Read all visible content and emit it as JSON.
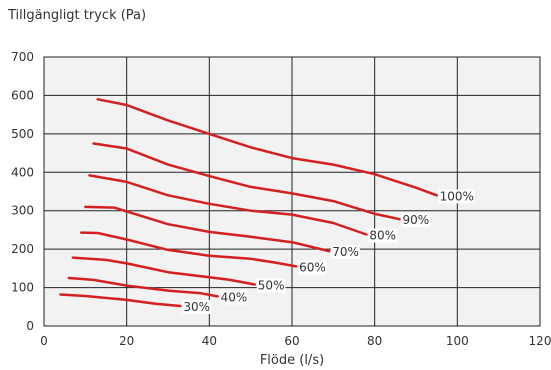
{
  "chart_data": {
    "type": "line",
    "xlabel": "Flöde (l/s)",
    "ylabel": "Tillgängligt tryck (Pa)",
    "xlim": [
      0,
      120
    ],
    "ylim": [
      0,
      700
    ],
    "xticks": [
      0,
      20,
      40,
      60,
      80,
      100,
      120
    ],
    "yticks": [
      0,
      100,
      200,
      300,
      400,
      500,
      600,
      700
    ],
    "grid": true,
    "line_color": "#d42020",
    "plot_background": "#f2f2f2",
    "series": [
      {
        "name": "100%",
        "points": [
          [
            13,
            590
          ],
          [
            20,
            575
          ],
          [
            30,
            535
          ],
          [
            40,
            500
          ],
          [
            50,
            465
          ],
          [
            60,
            437
          ],
          [
            70,
            420
          ],
          [
            80,
            395
          ],
          [
            90,
            360
          ],
          [
            95,
            340
          ]
        ]
      },
      {
        "name": "90%",
        "points": [
          [
            12,
            475
          ],
          [
            20,
            462
          ],
          [
            30,
            420
          ],
          [
            40,
            390
          ],
          [
            50,
            362
          ],
          [
            60,
            345
          ],
          [
            70,
            325
          ],
          [
            80,
            292
          ],
          [
            86,
            278
          ]
        ]
      },
      {
        "name": "80%",
        "points": [
          [
            11,
            392
          ],
          [
            20,
            375
          ],
          [
            30,
            340
          ],
          [
            40,
            318
          ],
          [
            50,
            300
          ],
          [
            60,
            290
          ],
          [
            70,
            268
          ],
          [
            78,
            238
          ]
        ]
      },
      {
        "name": "70%",
        "points": [
          [
            10,
            310
          ],
          [
            17,
            308
          ],
          [
            20,
            298
          ],
          [
            30,
            265
          ],
          [
            40,
            245
          ],
          [
            50,
            232
          ],
          [
            60,
            218
          ],
          [
            69,
            195
          ]
        ]
      },
      {
        "name": "60%",
        "points": [
          [
            9,
            243
          ],
          [
            13,
            242
          ],
          [
            20,
            225
          ],
          [
            30,
            198
          ],
          [
            40,
            183
          ],
          [
            50,
            175
          ],
          [
            56,
            165
          ],
          [
            61,
            155
          ]
        ]
      },
      {
        "name": "50%",
        "points": [
          [
            7,
            178
          ],
          [
            15,
            172
          ],
          [
            20,
            163
          ],
          [
            30,
            140
          ],
          [
            40,
            127
          ],
          [
            45,
            120
          ],
          [
            51,
            108
          ]
        ]
      },
      {
        "name": "40%",
        "points": [
          [
            6,
            125
          ],
          [
            12,
            120
          ],
          [
            20,
            105
          ],
          [
            30,
            92
          ],
          [
            38,
            85
          ],
          [
            42,
            77
          ]
        ]
      },
      {
        "name": "30%",
        "points": [
          [
            4,
            82
          ],
          [
            10,
            78
          ],
          [
            20,
            68
          ],
          [
            27,
            58
          ],
          [
            33,
            52
          ]
        ]
      }
    ]
  }
}
